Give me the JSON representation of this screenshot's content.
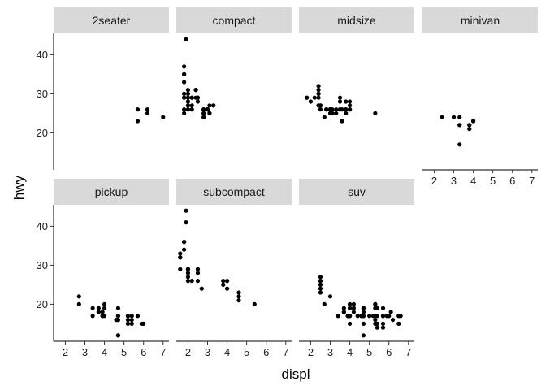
{
  "chart_data": {
    "type": "scatter",
    "title": "",
    "xlabel": "displ",
    "ylabel": "hwy",
    "xlim": [
      1.4,
      7.3
    ],
    "ylim": [
      10.5,
      45.5
    ],
    "x_ticks": [
      2,
      3,
      4,
      5,
      6,
      7
    ],
    "y_ticks": [
      20,
      30,
      40
    ],
    "grid": false,
    "facets": [
      {
        "label": "2seater",
        "points": [
          [
            5.7,
            26
          ],
          [
            5.7,
            23
          ],
          [
            6.2,
            26
          ],
          [
            6.2,
            25
          ],
          [
            7.0,
            24
          ]
        ]
      },
      {
        "label": "compact",
        "points": [
          [
            1.8,
            29
          ],
          [
            1.8,
            29
          ],
          [
            2.0,
            31
          ],
          [
            2.0,
            30
          ],
          [
            2.8,
            26
          ],
          [
            2.8,
            26
          ],
          [
            3.1,
            27
          ],
          [
            1.8,
            26
          ],
          [
            1.8,
            25
          ],
          [
            2.0,
            28
          ],
          [
            2.0,
            27
          ],
          [
            2.8,
            25
          ],
          [
            2.8,
            25
          ],
          [
            3.1,
            25
          ],
          [
            3.1,
            25
          ],
          [
            2.2,
            27
          ],
          [
            2.2,
            29
          ],
          [
            2.4,
            31
          ],
          [
            2.4,
            31
          ],
          [
            3.0,
            26
          ],
          [
            3.0,
            26
          ],
          [
            3.3,
            27
          ],
          [
            3.3,
            27
          ],
          [
            1.8,
            30
          ],
          [
            1.8,
            33
          ],
          [
            1.8,
            35
          ],
          [
            1.8,
            37
          ],
          [
            1.8,
            35
          ],
          [
            1.9,
            44
          ],
          [
            2.0,
            29
          ],
          [
            2.0,
            26
          ],
          [
            2.5,
            29
          ],
          [
            2.5,
            29
          ],
          [
            2.8,
            24
          ],
          [
            2.8,
            24
          ],
          [
            2.0,
            29
          ],
          [
            2.2,
            29
          ],
          [
            2.2,
            26
          ],
          [
            3.0,
            26
          ],
          [
            2.4,
            29
          ],
          [
            2.5,
            28
          ],
          [
            2.0,
            27
          ]
        ]
      },
      {
        "label": "midsize",
        "points": [
          [
            2.4,
            27
          ],
          [
            2.4,
            30
          ],
          [
            3.1,
            26
          ],
          [
            3.5,
            29
          ],
          [
            3.6,
            26
          ],
          [
            2.4,
            29
          ],
          [
            3.0,
            26
          ],
          [
            3.3,
            26
          ],
          [
            3.8,
            26
          ],
          [
            3.8,
            28
          ],
          [
            3.8,
            26
          ],
          [
            3.8,
            25
          ],
          [
            5.3,
            25
          ],
          [
            4.0,
            27
          ],
          [
            4.0,
            26
          ],
          [
            2.5,
            27
          ],
          [
            2.5,
            27
          ],
          [
            3.0,
            26
          ],
          [
            3.5,
            26
          ],
          [
            2.4,
            31
          ],
          [
            2.4,
            32
          ],
          [
            3.0,
            26
          ],
          [
            3.0,
            25
          ],
          [
            3.3,
            25
          ],
          [
            3.5,
            28
          ],
          [
            1.8,
            29
          ],
          [
            1.8,
            29
          ],
          [
            2.8,
            26
          ],
          [
            2.8,
            26
          ],
          [
            3.6,
            23
          ],
          [
            2.7,
            24
          ],
          [
            3.1,
            25
          ],
          [
            2.2,
            29
          ],
          [
            2.4,
            27
          ],
          [
            3.0,
            26
          ],
          [
            3.5,
            26
          ],
          [
            2.0,
            28
          ],
          [
            2.5,
            26
          ],
          [
            4.0,
            26
          ],
          [
            4.0,
            28
          ]
        ]
      },
      {
        "label": "minivan",
        "points": [
          [
            2.4,
            24
          ],
          [
            3.0,
            24
          ],
          [
            3.3,
            22
          ],
          [
            3.3,
            24
          ],
          [
            3.3,
            17
          ],
          [
            3.8,
            22
          ],
          [
            3.8,
            21
          ],
          [
            4.0,
            23
          ],
          [
            3.3,
            22
          ],
          [
            3.8,
            22
          ],
          [
            4.0,
            23
          ]
        ]
      },
      {
        "label": "pickup",
        "points": [
          [
            2.7,
            20
          ],
          [
            2.7,
            22
          ],
          [
            3.4,
            17
          ],
          [
            3.4,
            19
          ],
          [
            4.0,
            17
          ],
          [
            4.7,
            16
          ],
          [
            4.7,
            12
          ],
          [
            4.7,
            17
          ],
          [
            5.2,
            15
          ],
          [
            5.2,
            16
          ],
          [
            5.7,
            17
          ],
          [
            3.9,
            17
          ],
          [
            3.9,
            17
          ],
          [
            4.7,
            19
          ],
          [
            4.7,
            12
          ],
          [
            4.7,
            17
          ],
          [
            5.2,
            17
          ],
          [
            5.9,
            15
          ],
          [
            3.7,
            19
          ],
          [
            3.7,
            18
          ],
          [
            3.9,
            18
          ],
          [
            4.0,
            20
          ],
          [
            4.0,
            19
          ],
          [
            4.6,
            16
          ],
          [
            5.4,
            17
          ],
          [
            5.4,
            15
          ],
          [
            6.0,
            15
          ],
          [
            4.7,
            16
          ],
          [
            5.2,
            17
          ],
          [
            5.4,
            16
          ]
        ]
      },
      {
        "label": "subcompact",
        "points": [
          [
            3.8,
            26
          ],
          [
            3.8,
            25
          ],
          [
            4.0,
            26
          ],
          [
            4.0,
            24
          ],
          [
            4.6,
            21
          ],
          [
            4.6,
            22
          ],
          [
            4.6,
            23
          ],
          [
            5.4,
            20
          ],
          [
            1.6,
            33
          ],
          [
            1.6,
            32
          ],
          [
            1.6,
            32
          ],
          [
            1.6,
            29
          ],
          [
            1.6,
            32
          ],
          [
            1.8,
            34
          ],
          [
            1.8,
            36
          ],
          [
            1.8,
            36
          ],
          [
            2.0,
            29
          ],
          [
            2.0,
            26
          ],
          [
            2.0,
            27
          ],
          [
            2.5,
            26
          ],
          [
            2.5,
            28
          ],
          [
            2.7,
            24
          ],
          [
            2.2,
            26
          ],
          [
            1.9,
            44
          ],
          [
            1.9,
            41
          ],
          [
            2.0,
            29
          ],
          [
            2.0,
            29
          ],
          [
            2.0,
            28
          ],
          [
            2.5,
            29
          ]
        ]
      },
      {
        "label": "suv",
        "points": [
          [
            5.3,
            20
          ],
          [
            5.3,
            15
          ],
          [
            5.3,
            20
          ],
          [
            5.7,
            17
          ],
          [
            6.0,
            17
          ],
          [
            5.7,
            17
          ],
          [
            5.7,
            19
          ],
          [
            6.5,
            17
          ],
          [
            3.7,
            19
          ],
          [
            3.7,
            18
          ],
          [
            3.9,
            17
          ],
          [
            3.9,
            17
          ],
          [
            4.7,
            19
          ],
          [
            4.7,
            19
          ],
          [
            4.7,
            12
          ],
          [
            5.2,
            17
          ],
          [
            5.7,
            15
          ],
          [
            5.9,
            17
          ],
          [
            4.7,
            17
          ],
          [
            4.7,
            19
          ],
          [
            4.7,
            19
          ],
          [
            5.7,
            17
          ],
          [
            6.1,
            18
          ],
          [
            5.3,
            19
          ],
          [
            4.0,
            17
          ],
          [
            4.2,
            18
          ],
          [
            4.4,
            17
          ],
          [
            4.6,
            17
          ],
          [
            5.4,
            17
          ],
          [
            5.4,
            19
          ],
          [
            4.0,
            19
          ],
          [
            4.0,
            17
          ],
          [
            4.6,
            17
          ],
          [
            5.0,
            17
          ],
          [
            4.2,
            20
          ],
          [
            4.2,
            19
          ],
          [
            4.6,
            17
          ],
          [
            5.4,
            15
          ],
          [
            5.4,
            14
          ],
          [
            6.6,
            17
          ],
          [
            4.7,
            17
          ],
          [
            4.0,
            20
          ],
          [
            4.0,
            15
          ],
          [
            4.7,
            15
          ],
          [
            5.3,
            16
          ],
          [
            6.2,
            16
          ],
          [
            2.5,
            27
          ],
          [
            2.5,
            25
          ],
          [
            2.5,
            26
          ],
          [
            2.5,
            24
          ],
          [
            2.5,
            23
          ],
          [
            2.5,
            26
          ],
          [
            2.7,
            20
          ],
          [
            3.4,
            17
          ],
          [
            4.0,
            19
          ],
          [
            4.7,
            17
          ],
          [
            5.7,
            14
          ],
          [
            3.0,
            22
          ],
          [
            3.7,
            18
          ],
          [
            4.0,
            17
          ],
          [
            4.7,
            18
          ],
          [
            5.3,
            17
          ],
          [
            6.5,
            15
          ]
        ]
      }
    ]
  }
}
